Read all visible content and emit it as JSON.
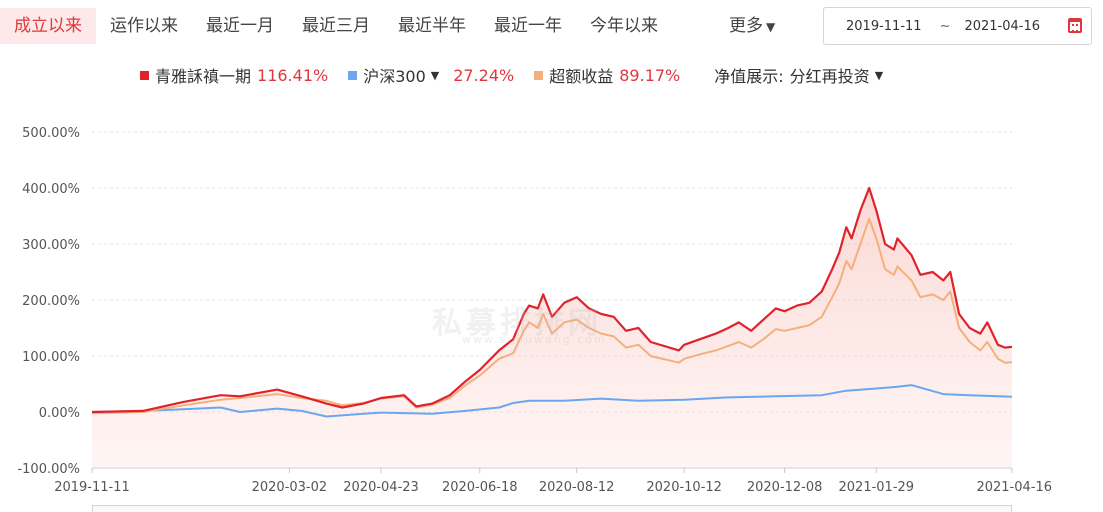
{
  "tabs": [
    {
      "label": "成立以来",
      "active": true
    },
    {
      "label": "运作以来",
      "active": false
    },
    {
      "label": "最近一月",
      "active": false
    },
    {
      "label": "最近三月",
      "active": false
    },
    {
      "label": "最近半年",
      "active": false
    },
    {
      "label": "最近一年",
      "active": false
    },
    {
      "label": "今年以来",
      "active": false
    }
  ],
  "more_label": "更多",
  "date_range": {
    "start": "2019-11-11",
    "separator": "~",
    "end": "2021-04-16"
  },
  "legend": {
    "fund": {
      "name": "青雅訸禛一期",
      "value": "116.41%",
      "color": "#e0222b"
    },
    "index": {
      "name": "沪深300",
      "value": "27.24%",
      "color": "#6aa7f0"
    },
    "excess": {
      "name": "超额收益",
      "value": "89.17%",
      "color": "#f3b07d"
    },
    "nav_display": {
      "label": "净值展示:",
      "value": "分红再投资"
    }
  },
  "value_color": "#e0383e",
  "watermark": "私募排排网",
  "watermark_sub": "www.simuwang.com",
  "chart_data": {
    "type": "line",
    "y_tick_labels": [
      "500.00%",
      "400.00%",
      "300.00%",
      "200.00%",
      "100.00%",
      "0.00%",
      "-100.00%"
    ],
    "y_ticks": [
      500,
      400,
      300,
      200,
      100,
      0,
      -100
    ],
    "ylim": [
      -100,
      500
    ],
    "xlim": [
      "2019-11-11",
      "2021-04-16"
    ],
    "x_tick_labels": [
      "2019-11-11",
      "2020-03-02",
      "2020-04-23",
      "2020-06-18",
      "2020-08-12",
      "2020-10-12",
      "2020-12-08",
      "2021-01-29",
      "2021-04-16"
    ],
    "grid": true,
    "series": [
      {
        "name": "青雅訸禛一期",
        "color": "#e0222b",
        "points": [
          [
            "2019-11-11",
            0
          ],
          [
            "2019-12-10",
            2
          ],
          [
            "2020-01-02",
            18
          ],
          [
            "2020-01-23",
            30
          ],
          [
            "2020-02-03",
            28
          ],
          [
            "2020-02-24",
            40
          ],
          [
            "2020-03-09",
            28
          ],
          [
            "2020-03-23",
            15
          ],
          [
            "2020-04-01",
            8
          ],
          [
            "2020-04-13",
            15
          ],
          [
            "2020-04-23",
            25
          ],
          [
            "2020-05-06",
            30
          ],
          [
            "2020-05-13",
            10
          ],
          [
            "2020-05-22",
            15
          ],
          [
            "2020-06-01",
            30
          ],
          [
            "2020-06-10",
            55
          ],
          [
            "2020-06-18",
            75
          ],
          [
            "2020-06-29",
            110
          ],
          [
            "2020-07-07",
            130
          ],
          [
            "2020-07-13",
            175
          ],
          [
            "2020-07-16",
            190
          ],
          [
            "2020-07-21",
            185
          ],
          [
            "2020-07-24",
            210
          ],
          [
            "2020-07-29",
            170
          ],
          [
            "2020-08-05",
            195
          ],
          [
            "2020-08-12",
            205
          ],
          [
            "2020-08-19",
            185
          ],
          [
            "2020-08-26",
            175
          ],
          [
            "2020-09-02",
            170
          ],
          [
            "2020-09-09",
            145
          ],
          [
            "2020-09-16",
            150
          ],
          [
            "2020-09-23",
            125
          ],
          [
            "2020-10-09",
            110
          ],
          [
            "2020-10-12",
            120
          ],
          [
            "2020-10-21",
            130
          ],
          [
            "2020-10-30",
            140
          ],
          [
            "2020-11-06",
            150
          ],
          [
            "2020-11-12",
            160
          ],
          [
            "2020-11-19",
            145
          ],
          [
            "2020-11-26",
            165
          ],
          [
            "2020-12-03",
            185
          ],
          [
            "2020-12-08",
            180
          ],
          [
            "2020-12-15",
            190
          ],
          [
            "2020-12-22",
            195
          ],
          [
            "2020-12-29",
            215
          ],
          [
            "2021-01-04",
            255
          ],
          [
            "2021-01-08",
            285
          ],
          [
            "2021-01-12",
            330
          ],
          [
            "2021-01-15",
            310
          ],
          [
            "2021-01-20",
            360
          ],
          [
            "2021-01-25",
            400
          ],
          [
            "2021-01-29",
            360
          ],
          [
            "2021-02-03",
            300
          ],
          [
            "2021-02-08",
            290
          ],
          [
            "2021-02-10",
            310
          ],
          [
            "2021-02-18",
            280
          ],
          [
            "2021-02-23",
            245
          ],
          [
            "2021-03-02",
            250
          ],
          [
            "2021-03-08",
            235
          ],
          [
            "2021-03-12",
            250
          ],
          [
            "2021-03-17",
            175
          ],
          [
            "2021-03-23",
            150
          ],
          [
            "2021-03-29",
            140
          ],
          [
            "2021-04-02",
            160
          ],
          [
            "2021-04-08",
            120
          ],
          [
            "2021-04-12",
            115
          ],
          [
            "2021-04-16",
            116.41
          ]
        ]
      },
      {
        "name": "沪深300",
        "color": "#6aa7f0",
        "points": [
          [
            "2019-11-11",
            0
          ],
          [
            "2019-12-10",
            2
          ],
          [
            "2020-01-02",
            5
          ],
          [
            "2020-01-23",
            8
          ],
          [
            "2020-02-03",
            0
          ],
          [
            "2020-02-24",
            6
          ],
          [
            "2020-03-09",
            2
          ],
          [
            "2020-03-23",
            -8
          ],
          [
            "2020-04-13",
            -3
          ],
          [
            "2020-04-23",
            -1
          ],
          [
            "2020-05-22",
            -3
          ],
          [
            "2020-06-10",
            2
          ],
          [
            "2020-06-29",
            8
          ],
          [
            "2020-07-07",
            16
          ],
          [
            "2020-07-16",
            20
          ],
          [
            "2020-08-05",
            20
          ],
          [
            "2020-08-26",
            24
          ],
          [
            "2020-09-16",
            20
          ],
          [
            "2020-10-12",
            22
          ],
          [
            "2020-11-06",
            26
          ],
          [
            "2020-12-03",
            28
          ],
          [
            "2020-12-29",
            30
          ],
          [
            "2021-01-12",
            38
          ],
          [
            "2021-01-29",
            42
          ],
          [
            "2021-02-10",
            45
          ],
          [
            "2021-02-18",
            48
          ],
          [
            "2021-03-08",
            32
          ],
          [
            "2021-03-23",
            30
          ],
          [
            "2021-04-08",
            28
          ],
          [
            "2021-04-16",
            27.24
          ]
        ]
      },
      {
        "name": "超额收益",
        "color": "#f3b07d",
        "points": [
          [
            "2019-11-11",
            -2
          ],
          [
            "2019-12-10",
            0
          ],
          [
            "2020-01-02",
            12
          ],
          [
            "2020-01-23",
            22
          ],
          [
            "2020-02-03",
            25
          ],
          [
            "2020-02-24",
            32
          ],
          [
            "2020-03-09",
            25
          ],
          [
            "2020-03-23",
            20
          ],
          [
            "2020-04-01",
            12
          ],
          [
            "2020-04-13",
            16
          ],
          [
            "2020-04-23",
            24
          ],
          [
            "2020-05-06",
            28
          ],
          [
            "2020-05-13",
            8
          ],
          [
            "2020-05-22",
            13
          ],
          [
            "2020-06-01",
            25
          ],
          [
            "2020-06-10",
            48
          ],
          [
            "2020-06-18",
            65
          ],
          [
            "2020-06-29",
            95
          ],
          [
            "2020-07-07",
            105
          ],
          [
            "2020-07-13",
            145
          ],
          [
            "2020-07-16",
            160
          ],
          [
            "2020-07-21",
            150
          ],
          [
            "2020-07-24",
            175
          ],
          [
            "2020-07-29",
            140
          ],
          [
            "2020-08-05",
            160
          ],
          [
            "2020-08-12",
            165
          ],
          [
            "2020-08-19",
            150
          ],
          [
            "2020-08-26",
            140
          ],
          [
            "2020-09-02",
            135
          ],
          [
            "2020-09-09",
            115
          ],
          [
            "2020-09-16",
            120
          ],
          [
            "2020-09-23",
            100
          ],
          [
            "2020-10-09",
            88
          ],
          [
            "2020-10-12",
            95
          ],
          [
            "2020-10-21",
            103
          ],
          [
            "2020-10-30",
            110
          ],
          [
            "2020-11-06",
            118
          ],
          [
            "2020-11-12",
            125
          ],
          [
            "2020-11-19",
            115
          ],
          [
            "2020-11-26",
            130
          ],
          [
            "2020-12-03",
            148
          ],
          [
            "2020-12-08",
            145
          ],
          [
            "2020-12-15",
            150
          ],
          [
            "2020-12-22",
            155
          ],
          [
            "2020-12-29",
            170
          ],
          [
            "2021-01-04",
            205
          ],
          [
            "2021-01-08",
            230
          ],
          [
            "2021-01-12",
            270
          ],
          [
            "2021-01-15",
            255
          ],
          [
            "2021-01-20",
            300
          ],
          [
            "2021-01-25",
            345
          ],
          [
            "2021-01-29",
            310
          ],
          [
            "2021-02-03",
            255
          ],
          [
            "2021-02-08",
            245
          ],
          [
            "2021-02-10",
            260
          ],
          [
            "2021-02-18",
            235
          ],
          [
            "2021-02-23",
            205
          ],
          [
            "2021-03-02",
            210
          ],
          [
            "2021-03-08",
            200
          ],
          [
            "2021-03-12",
            215
          ],
          [
            "2021-03-17",
            150
          ],
          [
            "2021-03-23",
            125
          ],
          [
            "2021-03-29",
            110
          ],
          [
            "2021-04-02",
            125
          ],
          [
            "2021-04-08",
            95
          ],
          [
            "2021-04-12",
            88
          ],
          [
            "2021-04-16",
            89.17
          ]
        ]
      }
    ]
  }
}
